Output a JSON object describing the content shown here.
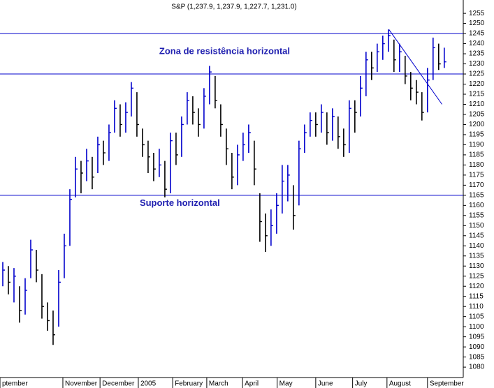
{
  "chart_data": {
    "type": "hlc",
    "title": "S&P (1,237.9, 1,237.9, 1,227.7, 1,231.0)",
    "up_color": "#0000cc",
    "down_color": "#000000",
    "line_color": "#0000cc",
    "xlim": [
      -0.5,
      82.4
    ],
    "ylim": [
      1075.2,
      1261.6
    ],
    "yticks": [
      1080,
      1085,
      1090,
      1095,
      1100,
      1105,
      1110,
      1115,
      1120,
      1125,
      1130,
      1135,
      1140,
      1145,
      1150,
      1155,
      1160,
      1165,
      1170,
      1175,
      1180,
      1185,
      1190,
      1195,
      1200,
      1205,
      1210,
      1215,
      1220,
      1225,
      1230,
      1235,
      1240,
      1245,
      1250,
      1255
    ],
    "xticks": [
      {
        "value": -0.5,
        "label": "ptember"
      },
      {
        "value": 10.75,
        "label": "November"
      },
      {
        "value": 17.4,
        "label": "December"
      },
      {
        "value": 24.25,
        "label": "2005"
      },
      {
        "value": 30.4,
        "label": "February"
      },
      {
        "value": 36.5,
        "label": "March"
      },
      {
        "value": 42.9,
        "label": "April"
      },
      {
        "value": 49.1,
        "label": "May"
      },
      {
        "value": 56,
        "label": "June"
      },
      {
        "value": 62.6,
        "label": "July"
      },
      {
        "value": 68.75,
        "label": "August"
      },
      {
        "value": 76,
        "label": "September"
      }
    ],
    "high": [
      1132,
      1130,
      1129,
      1120,
      1124,
      1143,
      1138,
      1126,
      1112,
      1108,
      1128,
      1146,
      1168,
      1184,
      1182,
      1188,
      1184,
      1194,
      1192,
      1200,
      1212,
      1210,
      1211,
      1221,
      1216,
      1198,
      1192,
      1186,
      1188,
      1182,
      1196,
      1196,
      1204,
      1216,
      1214,
      1208,
      1218,
      1229,
      1224,
      1210,
      1198,
      1186,
      1190,
      1196,
      1200,
      1192,
      1166,
      1156,
      1158,
      1166,
      1180,
      1180,
      1170,
      1192,
      1200,
      1206,
      1206,
      1210,
      1206,
      1208,
      1204,
      1198,
      1212,
      1212,
      1224,
      1236,
      1236,
      1240,
      1244,
      1247,
      1242,
      1240,
      1234,
      1226,
      1222,
      1216,
      1228,
      1243,
      1240,
      1238
    ],
    "low": [
      1120,
      1116,
      1112,
      1102,
      1106,
      1124,
      1122,
      1104,
      1098,
      1091,
      1100,
      1124,
      1140,
      1164,
      1166,
      1172,
      1168,
      1176,
      1180,
      1182,
      1196,
      1194,
      1196,
      1204,
      1194,
      1184,
      1176,
      1172,
      1174,
      1164,
      1166,
      1180,
      1184,
      1200,
      1200,
      1194,
      1198,
      1210,
      1208,
      1194,
      1180,
      1168,
      1170,
      1182,
      1186,
      1170,
      1142,
      1137,
      1140,
      1146,
      1156,
      1162,
      1148,
      1160,
      1186,
      1194,
      1194,
      1196,
      1190,
      1192,
      1188,
      1184,
      1186,
      1196,
      1204,
      1214,
      1222,
      1226,
      1232,
      1236,
      1226,
      1226,
      1220,
      1212,
      1210,
      1202,
      1206,
      1222,
      1227,
      1228
    ],
    "close": [
      1128,
      1122,
      1125,
      1108,
      1118,
      1138,
      1128,
      1110,
      1103,
      1096,
      1122,
      1140,
      1163,
      1178,
      1176,
      1182,
      1174,
      1190,
      1186,
      1196,
      1208,
      1200,
      1206,
      1218,
      1200,
      1190,
      1184,
      1178,
      1180,
      1168,
      1192,
      1185,
      1200,
      1212,
      1206,
      1200,
      1214,
      1226,
      1212,
      1200,
      1188,
      1174,
      1185,
      1190,
      1196,
      1178,
      1152,
      1145,
      1150,
      1160,
      1172,
      1175,
      1155,
      1188,
      1196,
      1202,
      1200,
      1206,
      1196,
      1204,
      1194,
      1190,
      1208,
      1206,
      1218,
      1232,
      1228,
      1236,
      1240,
      1244,
      1232,
      1236,
      1224,
      1218,
      1216,
      1206,
      1222,
      1238,
      1230,
      1231
    ],
    "hlines": [
      1245,
      1225,
      1165
    ],
    "trendline": {
      "x": [
        69.1,
        78.6
      ],
      "y": [
        1247,
        1210
      ]
    },
    "annotations": [
      {
        "text": "Zona de resistência horizontal",
        "x": 28,
        "y": 1236
      },
      {
        "text": "Suporte horizontal",
        "x": 24.5,
        "y": 1161
      }
    ]
  }
}
